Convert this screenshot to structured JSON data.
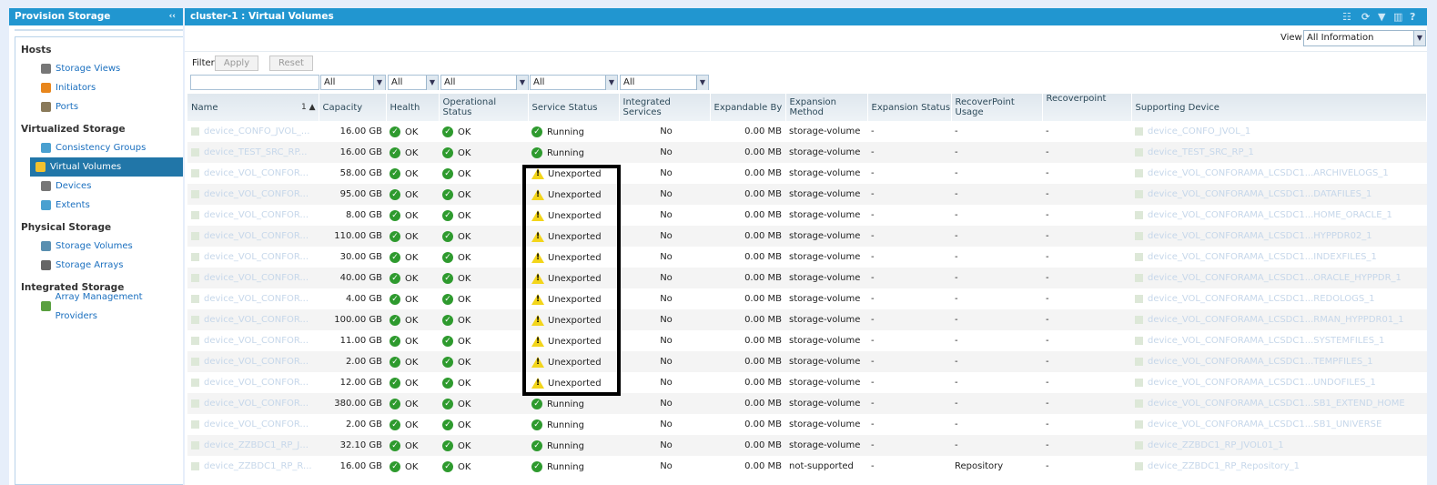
{
  "left_panel": {
    "title": "Provision Storage",
    "collapse": "‹‹",
    "sections": [
      {
        "title": "Hosts",
        "items": [
          {
            "label": "Storage Views",
            "color": "#777"
          },
          {
            "label": "Initiators",
            "color": "#e8861c"
          },
          {
            "label": "Ports",
            "color": "#8a7a5a"
          }
        ]
      },
      {
        "title": "Virtualized Storage",
        "items": [
          {
            "label": "Consistency Groups",
            "color": "#4aa0d0"
          },
          {
            "label": "Virtual Volumes",
            "color": "#f2c12e",
            "active": true
          },
          {
            "label": "Devices",
            "color": "#777"
          },
          {
            "label": "Extents",
            "color": "#4aa0d0"
          }
        ]
      },
      {
        "title": "Physical Storage",
        "items": [
          {
            "label": "Storage Volumes",
            "color": "#5a8fb0"
          },
          {
            "label": "Storage Arrays",
            "color": "#666"
          }
        ]
      },
      {
        "title": "Integrated Storage",
        "items": [
          {
            "label": "Array Management Providers",
            "color": "#5aa040"
          }
        ]
      }
    ]
  },
  "main": {
    "title": "cluster-1 : Virtual Volumes",
    "toolbar_icons": [
      "hierarchy-icon",
      "refresh-icon",
      "filter-icon",
      "columns-icon",
      "help-icon"
    ],
    "view_label": "View",
    "view_value": "All Information",
    "filter_label": "Filter",
    "apply": "Apply",
    "reset": "Reset",
    "filter_values": [
      "",
      "All",
      "All",
      "All",
      "All",
      "All"
    ],
    "sort_indicator": "1 ▲",
    "columns": [
      "Name",
      "Capacity",
      "Health",
      "Operational Status",
      "Service Status",
      "Integrated Services",
      "Expandable By",
      "Expansion Method",
      "Expansion Status",
      "RecoverPoint Usage",
      "Recoverpoint",
      "Supporting Device"
    ],
    "rows": [
      [
        "device_CONFO_JVOL_...",
        "16.00 GB",
        "OK",
        "OK",
        "Running",
        "No",
        "0.00 MB",
        "storage-volume",
        "-",
        "-",
        "-",
        "device_CONFO_JVOL_1"
      ],
      [
        "device_TEST_SRC_RP...",
        "16.00 GB",
        "OK",
        "OK",
        "Running",
        "No",
        "0.00 MB",
        "storage-volume",
        "-",
        "-",
        "-",
        "device_TEST_SRC_RP_1"
      ],
      [
        "device_VOL_CONFOR...",
        "58.00 GB",
        "OK",
        "OK",
        "Unexported",
        "No",
        "0.00 MB",
        "storage-volume",
        "-",
        "-",
        "-",
        "device_VOL_CONFORAMA_LCSDC1...ARCHIVELOGS_1"
      ],
      [
        "device_VOL_CONFOR...",
        "95.00 GB",
        "OK",
        "OK",
        "Unexported",
        "No",
        "0.00 MB",
        "storage-volume",
        "-",
        "-",
        "-",
        "device_VOL_CONFORAMA_LCSDC1...DATAFILES_1"
      ],
      [
        "device_VOL_CONFOR...",
        "8.00 GB",
        "OK",
        "OK",
        "Unexported",
        "No",
        "0.00 MB",
        "storage-volume",
        "-",
        "-",
        "-",
        "device_VOL_CONFORAMA_LCSDC1...HOME_ORACLE_1"
      ],
      [
        "device_VOL_CONFOR...",
        "110.00 GB",
        "OK",
        "OK",
        "Unexported",
        "No",
        "0.00 MB",
        "storage-volume",
        "-",
        "-",
        "-",
        "device_VOL_CONFORAMA_LCSDC1...HYPPDR02_1"
      ],
      [
        "device_VOL_CONFOR...",
        "30.00 GB",
        "OK",
        "OK",
        "Unexported",
        "No",
        "0.00 MB",
        "storage-volume",
        "-",
        "-",
        "-",
        "device_VOL_CONFORAMA_LCSDC1...INDEXFILES_1"
      ],
      [
        "device_VOL_CONFOR...",
        "40.00 GB",
        "OK",
        "OK",
        "Unexported",
        "No",
        "0.00 MB",
        "storage-volume",
        "-",
        "-",
        "-",
        "device_VOL_CONFORAMA_LCSDC1...ORACLE_HYPPDR_1"
      ],
      [
        "device_VOL_CONFOR...",
        "4.00 GB",
        "OK",
        "OK",
        "Unexported",
        "No",
        "0.00 MB",
        "storage-volume",
        "-",
        "-",
        "-",
        "device_VOL_CONFORAMA_LCSDC1...REDOLOGS_1"
      ],
      [
        "device_VOL_CONFOR...",
        "100.00 GB",
        "OK",
        "OK",
        "Unexported",
        "No",
        "0.00 MB",
        "storage-volume",
        "-",
        "-",
        "-",
        "device_VOL_CONFORAMA_LCSDC1...RMAN_HYPPDR01_1"
      ],
      [
        "device_VOL_CONFOR...",
        "11.00 GB",
        "OK",
        "OK",
        "Unexported",
        "No",
        "0.00 MB",
        "storage-volume",
        "-",
        "-",
        "-",
        "device_VOL_CONFORAMA_LCSDC1...SYSTEMFILES_1"
      ],
      [
        "device_VOL_CONFOR...",
        "2.00 GB",
        "OK",
        "OK",
        "Unexported",
        "No",
        "0.00 MB",
        "storage-volume",
        "-",
        "-",
        "-",
        "device_VOL_CONFORAMA_LCSDC1...TEMPFILES_1"
      ],
      [
        "device_VOL_CONFOR...",
        "12.00 GB",
        "OK",
        "OK",
        "Unexported",
        "No",
        "0.00 MB",
        "storage-volume",
        "-",
        "-",
        "-",
        "device_VOL_CONFORAMA_LCSDC1...UNDOFILES_1"
      ],
      [
        "device_VOL_CONFOR...",
        "380.00 GB",
        "OK",
        "OK",
        "Running",
        "No",
        "0.00 MB",
        "storage-volume",
        "-",
        "-",
        "-",
        "device_VOL_CONFORAMA_LCSDC1...SB1_EXTEND_HOME"
      ],
      [
        "device_VOL_CONFOR...",
        "2.00 GB",
        "OK",
        "OK",
        "Running",
        "No",
        "0.00 MB",
        "storage-volume",
        "-",
        "-",
        "-",
        "device_VOL_CONFORAMA_LCSDC1...SB1_UNIVERSE"
      ],
      [
        "device_ZZBDC1_RP_J...",
        "32.10 GB",
        "OK",
        "OK",
        "Running",
        "No",
        "0.00 MB",
        "storage-volume",
        "-",
        "-",
        "-",
        "device_ZZBDC1_RP_JVOL01_1"
      ],
      [
        "device_ZZBDC1_RP_R...",
        "16.00 GB",
        "OK",
        "OK",
        "Running",
        "No",
        "0.00 MB",
        "not-supported",
        "-",
        "Repository",
        "-",
        "device_ZZBDC1_RP_Repository_1"
      ]
    ]
  }
}
